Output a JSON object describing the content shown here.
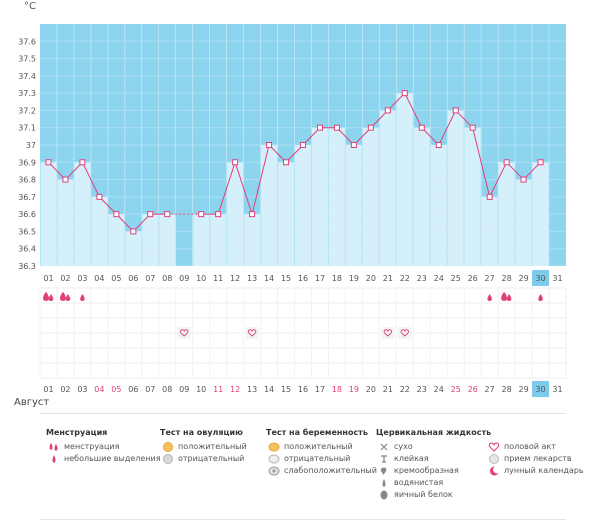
{
  "chart_data": {
    "type": "line",
    "unit": "°C",
    "month": "Август",
    "ylim": [
      36.3,
      37.7
    ],
    "yticks": [
      "36.3",
      "36.4",
      "36.5",
      "36.6",
      "36.7",
      "36.8",
      "36.9",
      "37",
      "37.1",
      "37.2",
      "37.3",
      "37.4",
      "37.5",
      "37.6"
    ],
    "days": [
      "01",
      "02",
      "03",
      "04",
      "05",
      "06",
      "07",
      "08",
      "09",
      "10",
      "11",
      "12",
      "13",
      "14",
      "15",
      "16",
      "17",
      "18",
      "19",
      "20",
      "21",
      "22",
      "23",
      "24",
      "25",
      "26",
      "27",
      "28",
      "29",
      "30",
      "31"
    ],
    "values": [
      36.9,
      36.8,
      36.9,
      36.7,
      36.6,
      36.5,
      36.6,
      36.6,
      null,
      36.6,
      36.6,
      36.9,
      36.6,
      37.0,
      36.9,
      37.0,
      37.1,
      37.1,
      37.0,
      37.1,
      37.2,
      37.3,
      37.1,
      37.0,
      37.2,
      37.1,
      36.7,
      36.9,
      36.8,
      36.9,
      null
    ],
    "gap_segments": [
      [
        8,
        10
      ]
    ],
    "today_day": "30",
    "red_days": [
      "04",
      "05",
      "11",
      "12",
      "18",
      "19",
      "25",
      "26"
    ],
    "menstruation": [
      "01",
      "02",
      "28"
    ],
    "light_discharge": [
      "03",
      "27",
      "30"
    ],
    "intercourse": [
      "09",
      "13",
      "21",
      "22"
    ],
    "colors": {
      "plot_bg": "#8dd5ef",
      "bar": "#d5effb",
      "line": "#e0407a",
      "marker": "#e0407a",
      "today": "#7ccbea",
      "weekend": "#e0407a"
    }
  },
  "legend": {
    "menstruation": {
      "title": "Менструация",
      "items": [
        "менструация",
        "небольшие выделения"
      ]
    },
    "ovulation": {
      "title": "Тест на овуляцию",
      "items": [
        "положительный",
        "отрицательный"
      ]
    },
    "pregnancy": {
      "title": "Тест на беременность",
      "items": [
        "положительный",
        "отрицательный",
        "слабоположительный"
      ]
    },
    "cervical": {
      "title": "Цервикальная жидкость",
      "items": [
        "сухо",
        "клейкая",
        "кремообразная",
        "водянистая",
        "яичный белок"
      ]
    },
    "other": {
      "items": [
        "половой акт",
        "прием лекарств",
        "лунный календарь"
      ]
    }
  }
}
